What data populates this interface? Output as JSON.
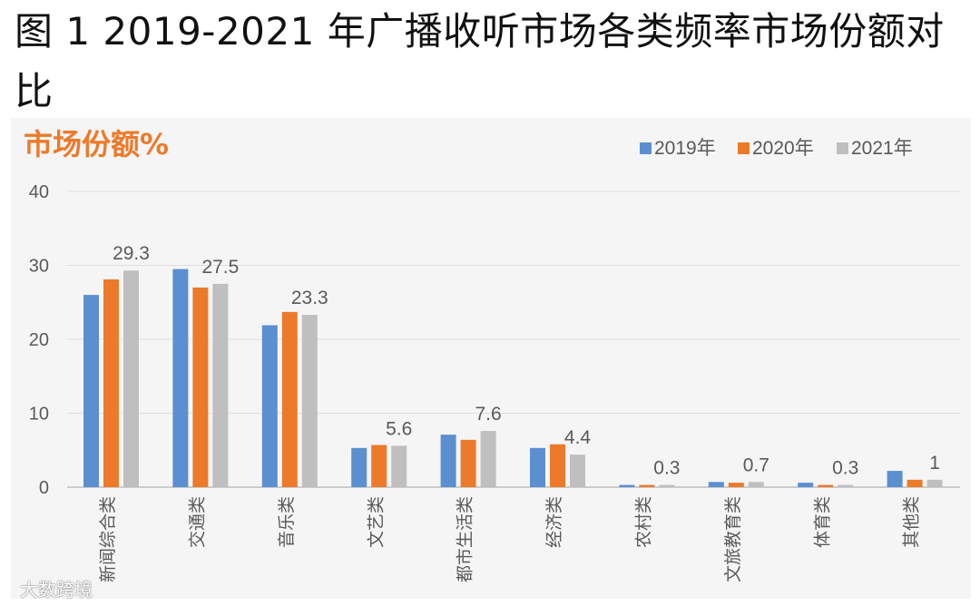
{
  "heading": "图 1 2019-2021 年广播收听市场各类频率市场份额对比",
  "watermark": "大数跨境",
  "chart_data": {
    "type": "bar",
    "unit_label": "市场份额%",
    "categories": [
      "新闻综合类",
      "交通类",
      "音乐类",
      "文艺类",
      "都市生活类",
      "经济类",
      "农村类",
      "文旅教育类",
      "体育类",
      "其他类"
    ],
    "series": [
      {
        "name": "2019年",
        "color": "#5b8fd0",
        "values": [
          26.0,
          29.5,
          21.9,
          5.3,
          7.1,
          5.3,
          0.3,
          0.7,
          0.6,
          2.2
        ]
      },
      {
        "name": "2020年",
        "color": "#ec7a2a",
        "values": [
          28.1,
          27.0,
          23.7,
          5.7,
          6.4,
          5.8,
          0.3,
          0.6,
          0.3,
          1.0
        ]
      },
      {
        "name": "2021年",
        "color": "#bfbfbf",
        "values": [
          29.3,
          27.5,
          23.3,
          5.6,
          7.6,
          4.4,
          0.3,
          0.7,
          0.3,
          1
        ]
      }
    ],
    "data_labels": [
      "29.3",
      "27.5",
      "23.3",
      "5.6",
      "7.6",
      "4.4",
      "0.3",
      "0.7",
      "0.3",
      "1"
    ],
    "yticks": [
      "0",
      "10",
      "20",
      "30",
      "40"
    ],
    "ylim": [
      0,
      40
    ],
    "grid": true,
    "legend_position": "top-right"
  }
}
